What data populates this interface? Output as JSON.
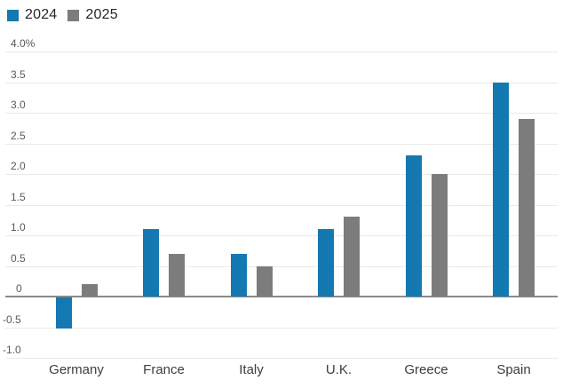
{
  "legend": {
    "items": [
      {
        "label": "2024",
        "color": "#1478b1"
      },
      {
        "label": "2025",
        "color": "#7c7c7c"
      }
    ]
  },
  "chart_data": {
    "type": "bar",
    "categories": [
      "Germany",
      "France",
      "Italy",
      "U.K.",
      "Greece",
      "Spain"
    ],
    "series": [
      {
        "name": "2024",
        "color": "#1478b1",
        "values": [
          -0.5,
          1.1,
          0.7,
          1.1,
          2.3,
          3.5
        ]
      },
      {
        "name": "2025",
        "color": "#7c7c7c",
        "values": [
          0.2,
          0.7,
          0.5,
          1.3,
          2.0,
          2.9
        ]
      }
    ],
    "y_ticks": [
      {
        "value": 4.0,
        "label": "4.0%"
      },
      {
        "value": 3.5,
        "label": "3.5"
      },
      {
        "value": 3.0,
        "label": "3.0"
      },
      {
        "value": 2.5,
        "label": "2.5"
      },
      {
        "value": 2.0,
        "label": "2.0"
      },
      {
        "value": 1.5,
        "label": "1.5"
      },
      {
        "value": 1.0,
        "label": "1.0"
      },
      {
        "value": 0.5,
        "label": "0.5"
      },
      {
        "value": 0,
        "label": "0"
      },
      {
        "value": -0.5,
        "label": "-0.5"
      },
      {
        "value": -1.0,
        "label": "-1.0"
      }
    ],
    "ylim": [
      -1.0,
      4.0
    ],
    "y_unit": "%",
    "grid": true,
    "legend_position": "top-left",
    "colors": {
      "background": "#ffffff",
      "gridline": "#eaeaea",
      "zero_line": "#8a8a8a",
      "tick_label": "#595959",
      "category_label": "#3d3d3d",
      "legend_label": "#262626"
    }
  }
}
